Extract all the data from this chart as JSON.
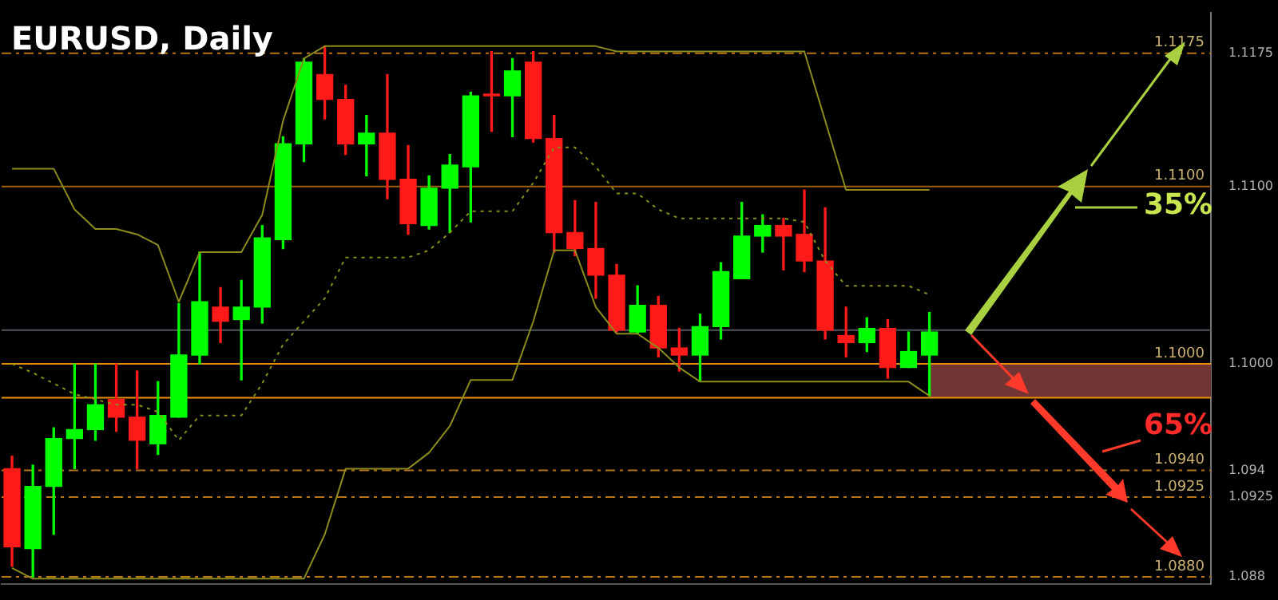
{
  "chart_data": {
    "type": "candlestick",
    "title": "EURUSD, Daily",
    "categories": [
      null,
      null,
      null,
      null,
      null,
      null,
      null,
      null,
      null,
      null,
      null,
      null,
      null,
      null,
      null,
      null,
      null,
      null,
      null,
      null,
      null,
      null,
      null,
      null,
      null,
      null,
      null,
      null,
      null,
      null,
      null,
      null,
      null,
      null,
      null,
      null,
      null,
      null,
      null,
      null,
      null,
      null,
      null,
      null,
      null,
      null,
      null,
      null,
      null,
      null,
      null,
      null,
      null,
      null,
      null,
      null,
      null,
      null
    ],
    "ohlc": [
      [
        1.0941,
        1.0948,
        1.0886,
        1.0897
      ],
      [
        1.0896,
        1.0943,
        1.088,
        1.0931
      ],
      [
        1.0931,
        1.0964,
        1.0904,
        1.0958
      ],
      [
        1.0958,
        1.1,
        1.0941,
        1.0963
      ],
      [
        1.0963,
        1.1,
        1.0957,
        1.0977
      ],
      [
        1.098,
        1.1,
        1.0962,
        1.097
      ],
      [
        1.097,
        1.0996,
        1.0941,
        1.0957
      ],
      [
        1.0955,
        1.099,
        1.0949,
        1.0971
      ],
      [
        1.097,
        1.1034,
        1.097,
        1.1005
      ],
      [
        1.1005,
        1.1063,
        1.1,
        1.1035
      ],
      [
        1.1032,
        1.1043,
        1.1012,
        1.1024
      ],
      [
        1.1025,
        1.1047,
        1.0991,
        1.1032
      ],
      [
        1.1032,
        1.1078,
        1.1023,
        1.1071
      ],
      [
        1.107,
        1.1128,
        1.1065,
        1.1124
      ],
      [
        1.1124,
        1.1172,
        1.1114,
        1.117
      ],
      [
        1.1163,
        1.1179,
        1.1138,
        1.1149
      ],
      [
        1.1149,
        1.1157,
        1.1118,
        1.1124
      ],
      [
        1.1124,
        1.114,
        1.1106,
        1.113
      ],
      [
        1.113,
        1.1163,
        1.1093,
        1.1104
      ],
      [
        1.1104,
        1.1123,
        1.1073,
        1.1079
      ],
      [
        1.1078,
        1.1106,
        1.1076,
        1.1099
      ],
      [
        1.1099,
        1.1118,
        1.1074,
        1.1112
      ],
      [
        1.1111,
        1.1153,
        1.108,
        1.1151
      ],
      [
        1.1152,
        1.1176,
        1.1131,
        1.1151
      ],
      [
        1.1151,
        1.1172,
        1.1128,
        1.1165
      ],
      [
        1.117,
        1.1176,
        1.1125,
        1.1127
      ],
      [
        1.1127,
        1.114,
        1.1063,
        1.1074
      ],
      [
        1.1074,
        1.1092,
        1.1061,
        1.1065
      ],
      [
        1.1065,
        1.1091,
        1.1037,
        1.105
      ],
      [
        1.105,
        1.1056,
        1.1018,
        1.1019
      ],
      [
        1.1018,
        1.1044,
        1.1017,
        1.1033
      ],
      [
        1.1033,
        1.1038,
        1.1004,
        1.1009
      ],
      [
        1.1009,
        1.102,
        1.0996,
        1.1005
      ],
      [
        1.1005,
        1.1028,
        1.099,
        1.1021
      ],
      [
        1.1021,
        1.1057,
        1.1014,
        1.1052
      ],
      [
        1.1048,
        1.1091,
        1.1048,
        1.1072
      ],
      [
        1.1072,
        1.1084,
        1.1063,
        1.1078
      ],
      [
        1.1078,
        1.1082,
        1.1053,
        1.1072
      ],
      [
        1.1073,
        1.1098,
        1.1052,
        1.1058
      ],
      [
        1.1058,
        1.1088,
        1.1014,
        1.1019
      ],
      [
        1.1016,
        1.1032,
        1.1004,
        1.1012
      ],
      [
        1.1012,
        1.1026,
        1.1007,
        1.102
      ],
      [
        1.102,
        1.1025,
        1.0992,
        1.0998
      ],
      [
        1.0998,
        1.1018,
        1.0998,
        1.1007
      ],
      [
        1.1005,
        1.1029,
        1.0982,
        1.1018
      ],
      null,
      null,
      null,
      null,
      null,
      null,
      null,
      null,
      null,
      null,
      null,
      null,
      null
    ],
    "colors": [
      "#ff1a1a",
      "#00ff00",
      "#00ff00",
      "#00ff00",
      "#00ff00",
      "#ff1a1a",
      "#ff1a1a",
      "#00ff00",
      "#00ff00",
      "#00ff00",
      "#ff1a1a",
      "#00ff00",
      "#00ff00",
      "#00ff00",
      "#00ff00",
      "#ff1a1a",
      "#ff1a1a",
      "#00ff00",
      "#ff1a1a",
      "#ff1a1a",
      "#00ff00",
      "#00ff00",
      "#00ff00",
      "#ff1a1a",
      "#00ff00",
      "#ff1a1a",
      "#ff1a1a",
      "#ff1a1a",
      "#ff1a1a",
      "#ff1a1a",
      "#00ff00",
      "#ff1a1a",
      "#ff1a1a",
      "#00ff00",
      "#00ff00",
      "#00ff00",
      "#00ff00",
      "#ff1a1a",
      "#ff1a1a",
      "#ff1a1a",
      "#ff1a1a",
      "#00ff00",
      "#ff1a1a",
      "#00ff00",
      "#00ff00",
      null,
      null,
      null,
      null,
      null,
      null,
      null,
      null,
      null,
      null,
      null,
      null,
      null
    ],
    "series": [
      {
        "type": "line",
        "color": "#8c8c1e",
        "line_style": "solid",
        "values": [
          1.111,
          1.111,
          1.111,
          1.1087,
          1.1076,
          1.1076,
          1.1073,
          1.1067,
          1.1035,
          1.1063,
          1.1063,
          1.1063,
          1.1084,
          1.1137,
          1.1172,
          1.1179,
          1.1179,
          1.1179,
          1.1179,
          1.1179,
          1.1179,
          1.1179,
          1.1179,
          1.1179,
          1.1179,
          1.1179,
          1.1179,
          1.1179,
          1.1179,
          1.1176,
          1.1176,
          1.1176,
          1.1176,
          1.1176,
          1.1176,
          1.1176,
          1.1176,
          1.1176,
          1.1176,
          1.1137,
          1.1098,
          1.1098,
          1.1098,
          1.1098,
          1.1098,
          null,
          null,
          null,
          null,
          null,
          null,
          null,
          null,
          null,
          null,
          null,
          null,
          null
        ]
      },
      {
        "type": "line",
        "color": "#8c8c1e",
        "line_style": "dotted",
        "values": [
          1.1,
          1.0995,
          1.0989,
          1.0983,
          1.098,
          1.0977,
          1.0977,
          1.0973,
          1.0957,
          1.0971,
          1.0971,
          1.0971,
          1.0989,
          1.1011,
          1.1024,
          1.1037,
          1.106,
          1.106,
          1.106,
          1.106,
          1.1064,
          1.1074,
          1.1086,
          1.1086,
          1.1086,
          1.1102,
          1.1122,
          1.1122,
          1.1111,
          1.1096,
          1.1096,
          1.1087,
          1.1082,
          1.1082,
          1.1082,
          1.1082,
          1.1082,
          1.1082,
          1.108,
          1.1058,
          1.1044,
          1.1044,
          1.1044,
          1.1044,
          1.1039,
          null,
          null,
          null,
          null,
          null,
          null,
          null,
          null,
          null,
          null,
          null,
          null,
          null
        ]
      },
      {
        "type": "line",
        "color": "#8c8c1e",
        "line_style": "solid",
        "values": [
          1.0885,
          1.0879,
          1.0879,
          1.0879,
          1.0879,
          1.0879,
          1.0879,
          1.0879,
          1.0879,
          1.0879,
          1.0879,
          1.0879,
          1.0879,
          1.0879,
          1.0879,
          1.0904,
          1.0941,
          1.0941,
          1.0941,
          1.0941,
          1.095,
          1.0965,
          1.0991,
          1.0991,
          1.0991,
          1.1024,
          1.1064,
          1.1064,
          1.1032,
          1.1017,
          1.1017,
          1.1009,
          1.0998,
          1.099,
          1.099,
          1.099,
          1.099,
          1.099,
          1.099,
          1.099,
          1.099,
          1.099,
          1.099,
          1.099,
          1.0982,
          null,
          null,
          null,
          null,
          null,
          null,
          null,
          null,
          null,
          null,
          null,
          null,
          null
        ]
      }
    ],
    "ylim": [
      1.0876,
      1.1198
    ],
    "yticks": [
      1.088,
      1.0925,
      1.094,
      {
        "value": 1.1,
        "label": "1.1000"
      },
      {
        "value": 1.11,
        "label": "1.1100"
      },
      1.1175
    ],
    "tick_labels": "y",
    "grid": false,
    "legend": false,
    "ref_lines": [
      {
        "axis": "y",
        "value": 1.1175,
        "label": "1.1175",
        "color": "#b8741a",
        "line_style": "dashed"
      },
      {
        "axis": "y",
        "value": 1.11,
        "label": "1.1100",
        "color": "#9c5f10",
        "line_style": "solid"
      },
      {
        "axis": "y",
        "value": 1.1019,
        "color": "#50565e",
        "line_style": "solid"
      },
      {
        "axis": "y",
        "value": 1.1,
        "label": "1.1000",
        "color": "#e8900a",
        "line_style": "solid"
      },
      {
        "axis": "y",
        "value": 1.0981,
        "color": "#e8900a",
        "line_style": "solid"
      },
      {
        "axis": "y",
        "value": 1.094,
        "label": "1.0940",
        "color": "#b8741a",
        "line_style": "dashed"
      },
      {
        "axis": "y",
        "value": 1.0925,
        "label": "1.0925",
        "color": "#b8741a",
        "line_style": "dashed"
      },
      {
        "axis": "y",
        "value": 1.088,
        "label": "1.0880",
        "color": "#b8741a",
        "line_style": "dashed"
      }
    ],
    "bands": [
      {
        "axis": "y",
        "from": 1.0981,
        "to": 1.1,
        "color": "#733434"
      }
    ],
    "annotations": [
      "35%",
      "65%"
    ]
  }
}
